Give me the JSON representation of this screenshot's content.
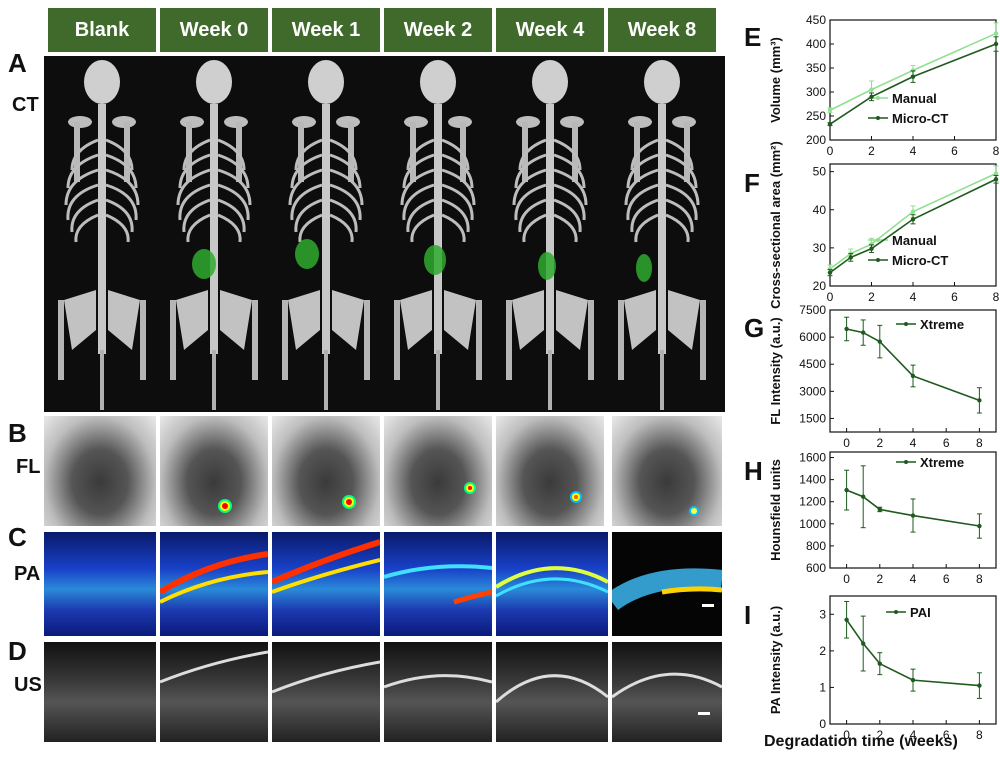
{
  "columns": [
    "Blank",
    "Week 0",
    "Week 1",
    "Week 2",
    "Week 4",
    "Week 8"
  ],
  "panels": {
    "A": "A",
    "B": "B",
    "C": "C",
    "D": "D",
    "E": "E",
    "F": "F",
    "G": "G",
    "H": "H",
    "I": "I"
  },
  "rows": {
    "ct": "CT",
    "fl": "FL",
    "pa": "PA",
    "us": "US"
  },
  "colors": {
    "header_bg": "#3f6a2b",
    "manual": "#8fe08f",
    "microct": "#1f5a1f",
    "line": "#2e6b2e",
    "implant": "#2faa2f"
  },
  "shared_xlabel": "Degradation time (weeks)",
  "chart_data": [
    {
      "panel": "E",
      "type": "line",
      "ylabel": "Volume (mm³)",
      "xlim": [
        0,
        8
      ],
      "ylim": [
        200,
        450
      ],
      "xticks": [
        0,
        2,
        4,
        6,
        8
      ],
      "yticks": [
        200,
        250,
        300,
        350,
        400,
        450
      ],
      "legend": "bottom-right",
      "series": [
        {
          "name": "Manual",
          "x": [
            0,
            2,
            4,
            8
          ],
          "y": [
            262,
            305,
            345,
            422
          ],
          "err": [
            5,
            18,
            10,
            22
          ],
          "color": "#8fe08f"
        },
        {
          "name": "Micro-CT",
          "x": [
            0,
            2,
            4,
            8
          ],
          "y": [
            233,
            290,
            332,
            400
          ],
          "err": [
            3,
            8,
            12,
            15
          ],
          "color": "#1f5a1f"
        }
      ]
    },
    {
      "panel": "F",
      "type": "line",
      "ylabel": "Cross-sectional area (mm²)",
      "xlim": [
        0,
        8
      ],
      "ylim": [
        20,
        52
      ],
      "xticks": [
        0,
        2,
        4,
        6,
        8
      ],
      "yticks": [
        20,
        30,
        40,
        50
      ],
      "legend": "bottom-right",
      "series": [
        {
          "name": "Manual",
          "x": [
            0,
            1,
            2,
            4,
            8
          ],
          "y": [
            24.5,
            28.5,
            31,
            39.5,
            49.5
          ],
          "err": [
            1,
            1.2,
            1.5,
            1.5,
            2
          ],
          "color": "#8fe08f"
        },
        {
          "name": "Micro-CT",
          "x": [
            0,
            1,
            2,
            4,
            8
          ],
          "y": [
            23.5,
            27.5,
            29.8,
            37.5,
            48
          ],
          "err": [
            0.8,
            1,
            1,
            1.2,
            1
          ],
          "color": "#1f5a1f"
        }
      ]
    },
    {
      "panel": "G",
      "type": "line",
      "ylabel": "FL Intensity (a.u.)",
      "xlim": [
        -1,
        9
      ],
      "ylim": [
        750,
        7500
      ],
      "xticks": [
        0,
        2,
        4,
        6,
        8
      ],
      "yticks": [
        1500,
        3000,
        4500,
        6000,
        7500
      ],
      "legend": "top-right",
      "series": [
        {
          "name": "Xtreme",
          "x": [
            0,
            1,
            2,
            4,
            8
          ],
          "y": [
            6450,
            6250,
            5750,
            3850,
            2500
          ],
          "err": [
            650,
            700,
            900,
            600,
            700
          ],
          "color": "#1f5a1f"
        }
      ]
    },
    {
      "panel": "H",
      "type": "line",
      "ylabel": "Hounsfield units",
      "xlim": [
        -1,
        9
      ],
      "ylim": [
        600,
        1650
      ],
      "xticks": [
        0,
        2,
        4,
        6,
        8
      ],
      "yticks": [
        600,
        800,
        1000,
        1200,
        1400,
        1600
      ],
      "legend": "top-right",
      "series": [
        {
          "name": "Xtreme",
          "x": [
            0,
            1,
            2,
            4,
            8
          ],
          "y": [
            1305,
            1245,
            1130,
            1075,
            980
          ],
          "err": [
            180,
            280,
            20,
            150,
            110
          ],
          "color": "#1f5a1f"
        }
      ]
    },
    {
      "panel": "I",
      "type": "line",
      "ylabel": "PA Intensity (a.u.)",
      "xlabel": "Degradation time (weeks)",
      "xlim": [
        -1,
        9
      ],
      "ylim": [
        0,
        3.5
      ],
      "xticks": [
        0,
        2,
        4,
        6,
        8
      ],
      "yticks": [
        0,
        1,
        2,
        3
      ],
      "legend": "top-right",
      "series": [
        {
          "name": "PAI",
          "x": [
            0,
            1,
            2,
            4,
            8
          ],
          "y": [
            2.85,
            2.2,
            1.65,
            1.2,
            1.05
          ],
          "err": [
            0.5,
            0.75,
            0.3,
            0.3,
            0.35
          ],
          "color": "#1f5a1f"
        }
      ]
    }
  ]
}
